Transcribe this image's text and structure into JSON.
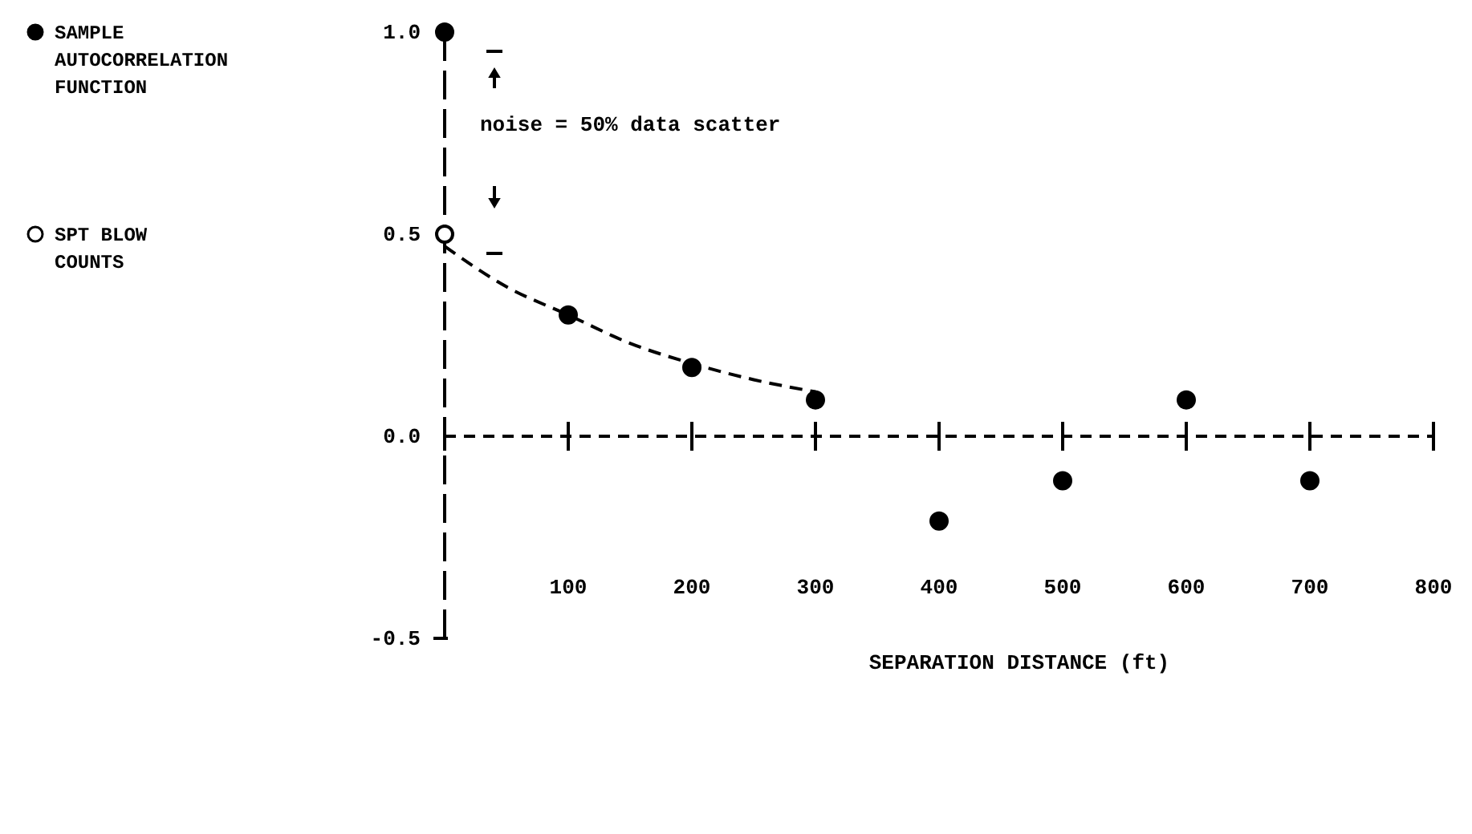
{
  "chart_data": {
    "type": "scatter",
    "xlabel": "SEPARATION DISTANCE (ft)",
    "xlim": [
      0,
      800
    ],
    "ylim": [
      -0.5,
      1.0
    ],
    "xticks": [
      {
        "value": 0,
        "label": null
      },
      100,
      200,
      300,
      400,
      500,
      600,
      700,
      800
    ],
    "yticks": [
      {
        "value": -0.5,
        "label": "-0.5"
      },
      {
        "value": 0,
        "label": "0.0"
      },
      {
        "value": 0.5,
        "label": "0.5"
      },
      {
        "value": 1,
        "label": "1.0"
      }
    ],
    "legend": "left",
    "marker": "circle",
    "ref_lines": [
      {
        "axis": "y",
        "value": 0,
        "color": "#000000",
        "line_style": "dashed"
      }
    ],
    "annotations": [
      "noise = 50% data scatter"
    ],
    "series": [
      {
        "name": "SAMPLE AUTOCORRELATION FUNCTION",
        "color": "#000000",
        "x": [
          0,
          100,
          200,
          300,
          400,
          500,
          600,
          700
        ],
        "values": [
          1.0,
          0.3,
          0.17,
          0.09,
          -0.21,
          -0.11,
          0.09,
          -0.11
        ]
      },
      {
        "name": "SPT BLOW COUNTS",
        "color": "#ffffff",
        "x": [
          0
        ],
        "values": [
          0.5
        ]
      },
      {
        "type": "line",
        "color": "#000000",
        "line_style": "dashed",
        "marker": "none",
        "x": [
          0,
          50,
          100,
          150,
          200,
          250,
          300
        ],
        "values": [
          0.47,
          0.37,
          0.3,
          0.23,
          0.18,
          0.14,
          0.11
        ]
      }
    ]
  }
}
